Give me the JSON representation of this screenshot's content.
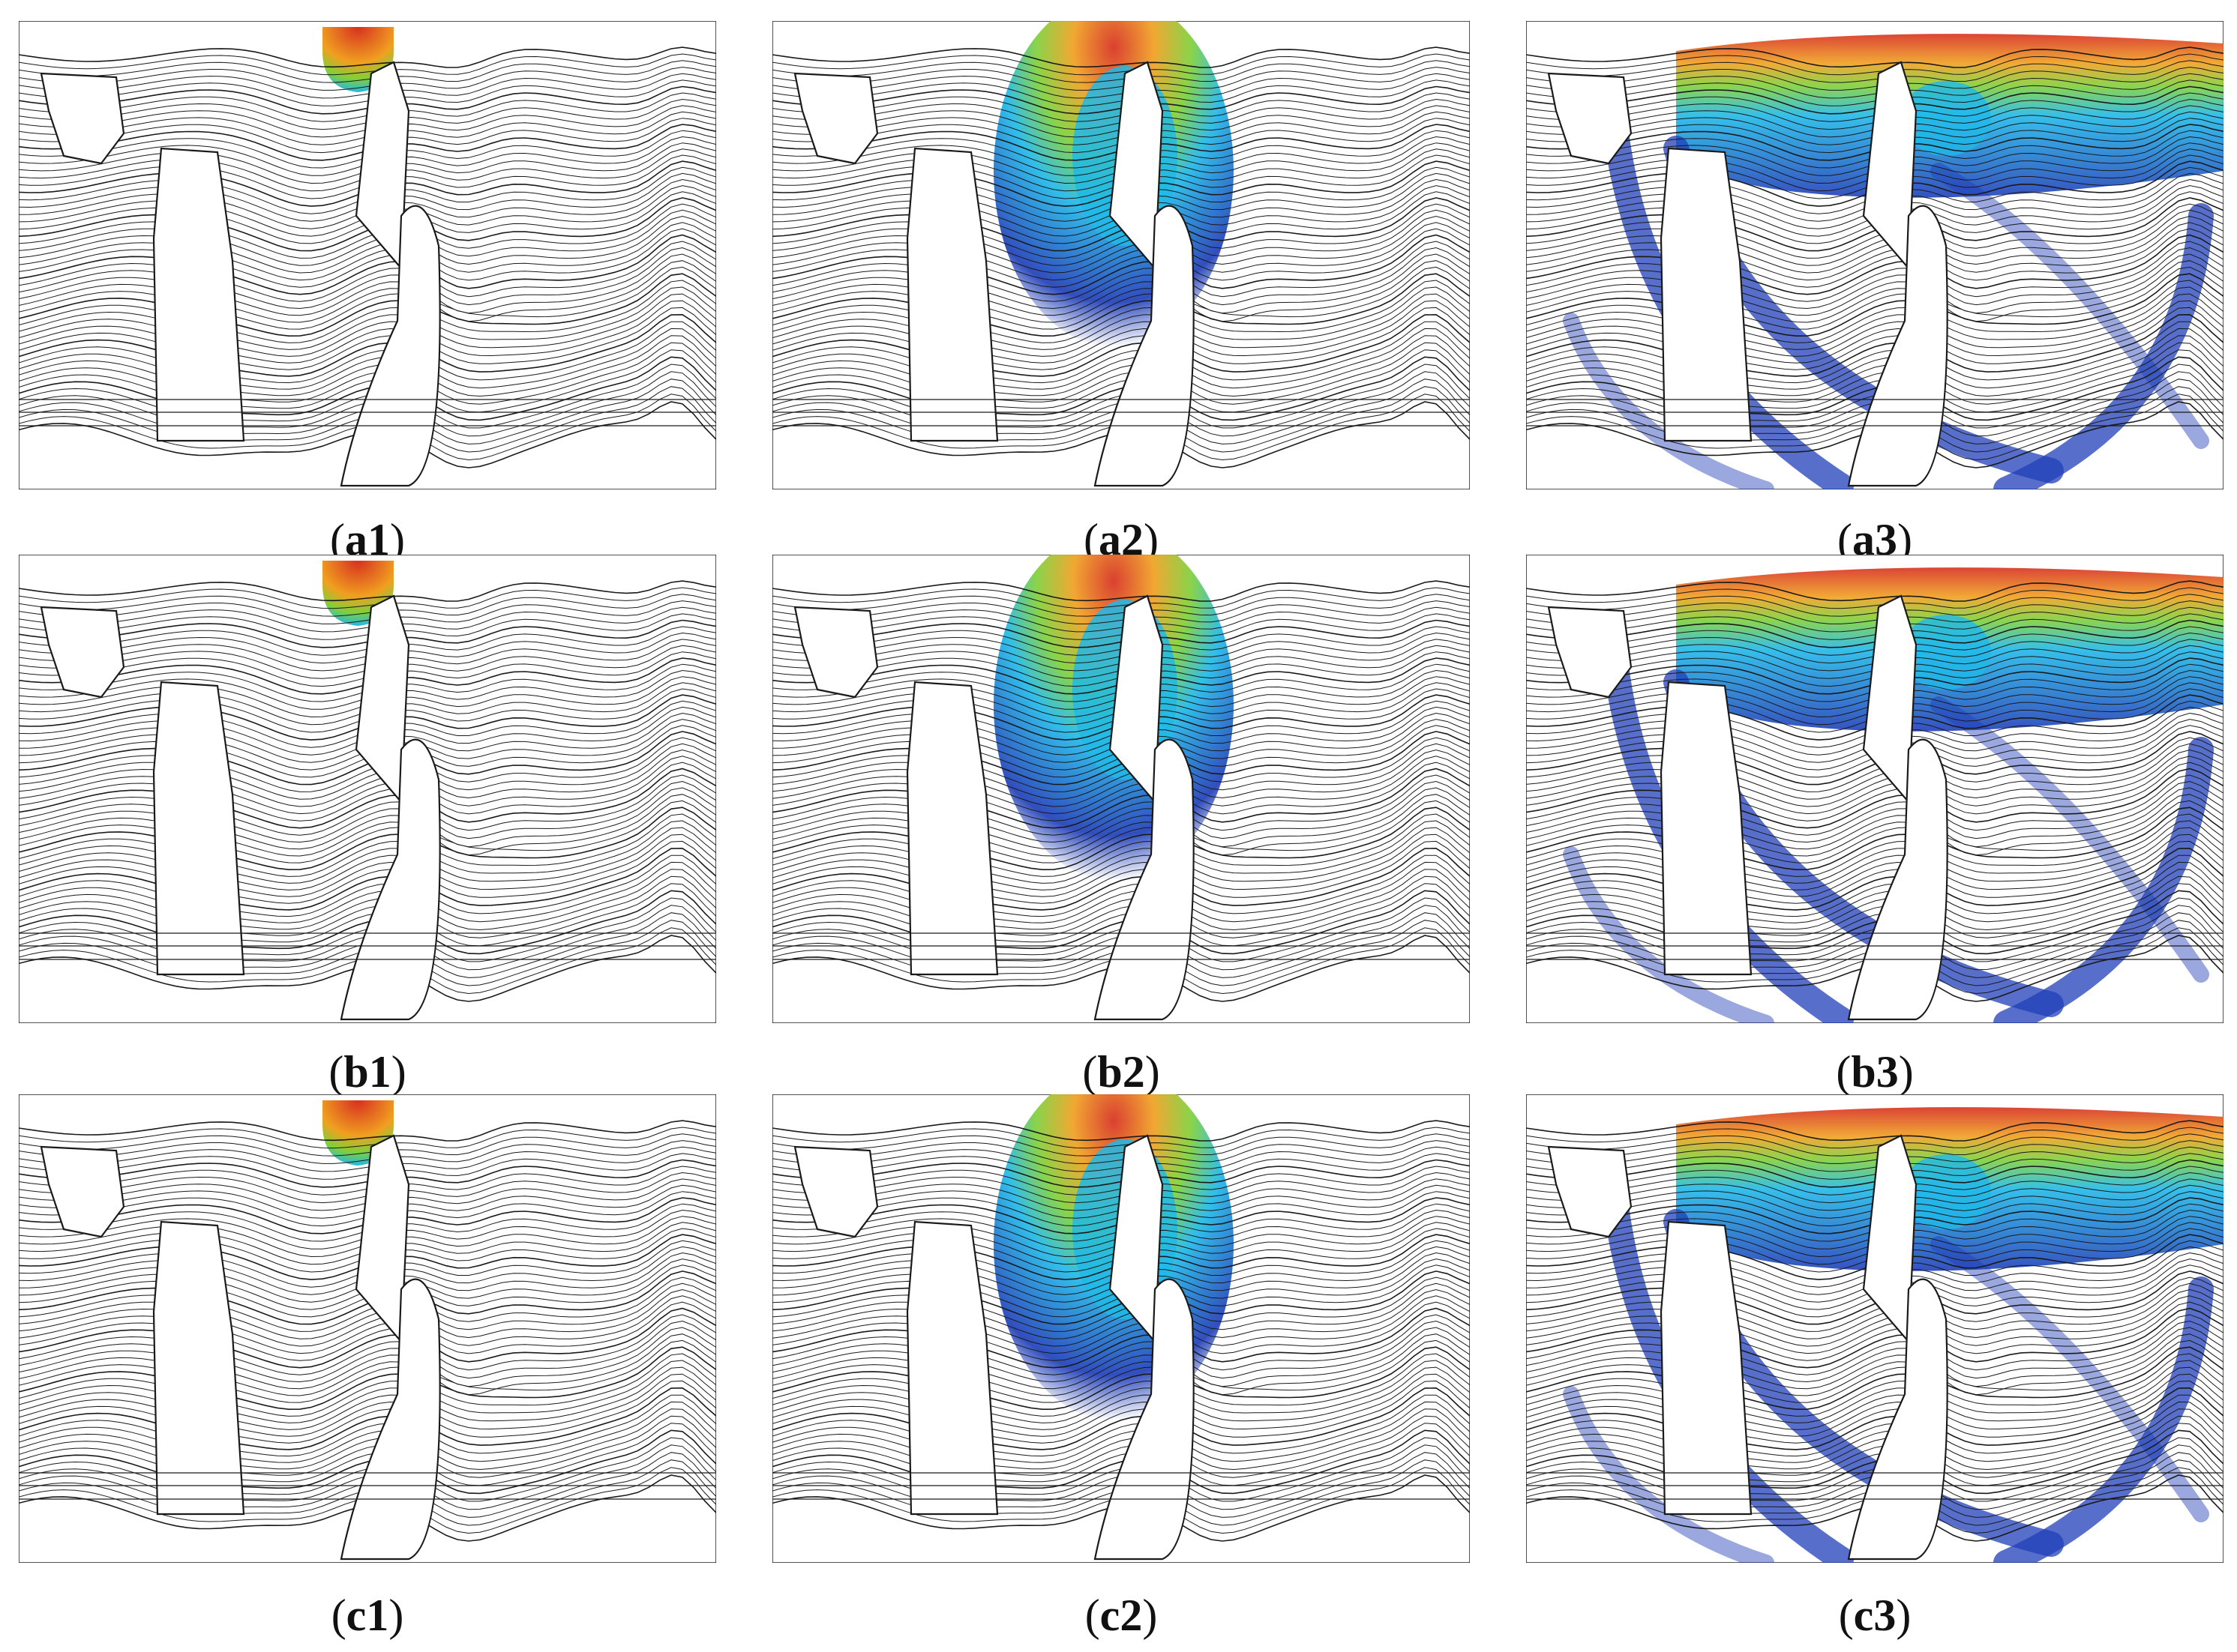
{
  "figure": {
    "panels": [
      {
        "id": "a1",
        "caption_letter": "a",
        "caption_num": "1",
        "stage": 1
      },
      {
        "id": "a2",
        "caption_letter": "a",
        "caption_num": "2",
        "stage": 2
      },
      {
        "id": "a3",
        "caption_letter": "a",
        "caption_num": "3",
        "stage": 3
      },
      {
        "id": "b1",
        "caption_letter": "b",
        "caption_num": "1",
        "stage": 1
      },
      {
        "id": "b2",
        "caption_letter": "b",
        "caption_num": "2",
        "stage": 2
      },
      {
        "id": "b3",
        "caption_letter": "b",
        "caption_num": "3",
        "stage": 3
      },
      {
        "id": "c1",
        "caption_letter": "c",
        "caption_num": "1",
        "stage": 1
      },
      {
        "id": "c2",
        "caption_letter": "c",
        "caption_num": "2",
        "stage": 2
      },
      {
        "id": "c3",
        "caption_letter": "c",
        "caption_num": "3",
        "stage": 3
      }
    ],
    "colors": {
      "line": "#1a1a1a",
      "hot": "#d7301f",
      "warm": "#f0a020",
      "mid": "#7fd03a",
      "cool": "#20b8e8",
      "deep": "#1f3fb8"
    }
  }
}
